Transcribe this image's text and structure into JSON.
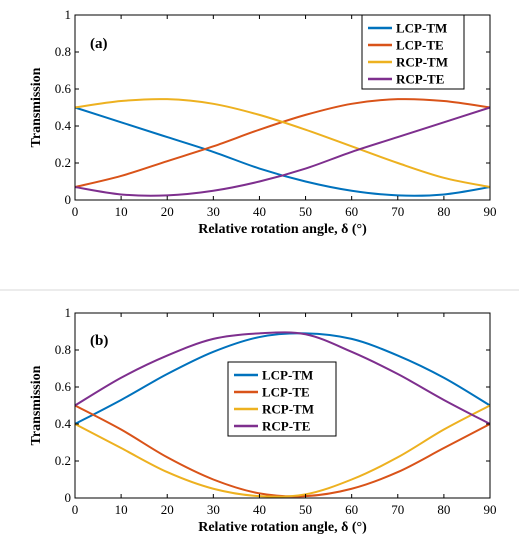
{
  "chart_data": [
    {
      "type": "line",
      "panel_label": "(a)",
      "xlabel": "Relative rotation angle, δ (°)",
      "ylabel": "Transmission",
      "xlim": [
        0,
        90
      ],
      "ylim": [
        0,
        1
      ],
      "xticks": [
        0,
        10,
        20,
        30,
        40,
        50,
        60,
        70,
        80,
        90
      ],
      "yticks": [
        0,
        0.2,
        0.4,
        0.6,
        0.8,
        1
      ],
      "ytick_labels": [
        "0",
        "0.2",
        "0.4",
        "0.6",
        "0.8",
        "1"
      ],
      "grid": false,
      "legend": "top-right",
      "x": [
        0,
        10,
        20,
        30,
        40,
        50,
        60,
        70,
        80,
        90
      ],
      "series": [
        {
          "name": "LCP-TM",
          "color": "#0072BD",
          "values": [
            0.5,
            0.42,
            0.34,
            0.26,
            0.17,
            0.1,
            0.05,
            0.025,
            0.03,
            0.07
          ]
        },
        {
          "name": "LCP-TE",
          "color": "#D95319",
          "values": [
            0.07,
            0.13,
            0.21,
            0.29,
            0.38,
            0.46,
            0.52,
            0.545,
            0.535,
            0.5
          ]
        },
        {
          "name": "RCP-TM",
          "color": "#EDB120",
          "values": [
            0.5,
            0.535,
            0.545,
            0.52,
            0.46,
            0.38,
            0.29,
            0.2,
            0.12,
            0.07
          ]
        },
        {
          "name": "RCP-TE",
          "color": "#7E2F8E",
          "values": [
            0.07,
            0.03,
            0.025,
            0.05,
            0.1,
            0.17,
            0.26,
            0.34,
            0.42,
            0.5
          ]
        }
      ]
    },
    {
      "type": "line",
      "panel_label": "(b)",
      "xlabel": "Relative rotation angle, δ (°)",
      "ylabel": "Transmission",
      "xlim": [
        0,
        90
      ],
      "ylim": [
        0,
        1
      ],
      "xticks": [
        0,
        10,
        20,
        30,
        40,
        50,
        60,
        70,
        80,
        90
      ],
      "yticks": [
        0,
        0.2,
        0.4,
        0.6,
        0.8,
        1
      ],
      "ytick_labels": [
        "0",
        "0.2",
        "0.4",
        "0.6",
        "0.8",
        "1"
      ],
      "grid": false,
      "legend": "center",
      "x": [
        0,
        10,
        20,
        30,
        40,
        50,
        60,
        70,
        80,
        90
      ],
      "series": [
        {
          "name": "LCP-TM",
          "color": "#0072BD",
          "values": [
            0.4,
            0.53,
            0.67,
            0.79,
            0.87,
            0.89,
            0.86,
            0.77,
            0.65,
            0.5
          ]
        },
        {
          "name": "LCP-TE",
          "color": "#D95319",
          "values": [
            0.5,
            0.37,
            0.22,
            0.1,
            0.025,
            0.01,
            0.05,
            0.14,
            0.27,
            0.4
          ]
        },
        {
          "name": "RCP-TM",
          "color": "#EDB120",
          "values": [
            0.4,
            0.27,
            0.14,
            0.05,
            0.01,
            0.02,
            0.1,
            0.22,
            0.37,
            0.5
          ]
        },
        {
          "name": "RCP-TE",
          "color": "#7E2F8E",
          "values": [
            0.5,
            0.65,
            0.77,
            0.86,
            0.89,
            0.885,
            0.79,
            0.67,
            0.53,
            0.4
          ]
        }
      ]
    }
  ]
}
